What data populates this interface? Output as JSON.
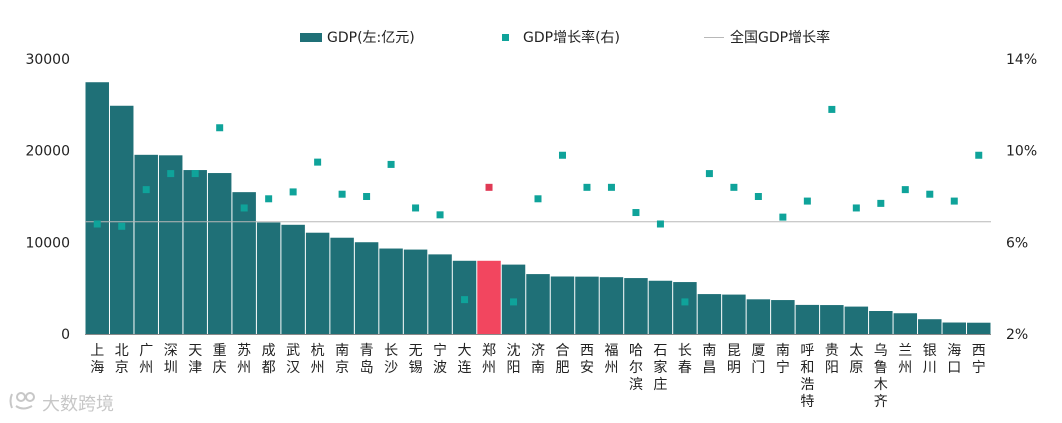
{
  "legend": {
    "bar_label": "GDP(左:亿元)",
    "dot_label": "GDP增长率(右)",
    "line_label": "全国GDP增长率"
  },
  "watermark": "大数跨境",
  "colors": {
    "bar": "#1f7077",
    "highlight_bar": "#f2465f",
    "dot": "#0fa39a",
    "highlight_dot": "#e03a55",
    "national_line": "#b8b8b8"
  },
  "chart_data": {
    "type": "bar",
    "categories": [
      "上海",
      "北京",
      "广州",
      "深圳",
      "天津",
      "重庆",
      "苏州",
      "成都",
      "武汉",
      "杭州",
      "南京",
      "青岛",
      "长沙",
      "无锡",
      "宁波",
      "大连",
      "郑州",
      "沈阳",
      "济南",
      "合肥",
      "西安",
      "福州",
      "哈尔滨",
      "石家庄",
      "长春",
      "南昌",
      "昆明",
      "厦门",
      "南宁",
      "呼和浩特",
      "贵阳",
      "太原",
      "乌鲁木齐",
      "兰州",
      "银川",
      "海口",
      "西宁"
    ],
    "highlight_category": "郑州",
    "series": [
      {
        "name": "GDP(左:亿元)",
        "axis": "left",
        "values": [
          27466,
          24899,
          19547,
          19493,
          17885,
          17559,
          15475,
          12170,
          11913,
          11050,
          10503,
          10011,
          9324,
          9210,
          8686,
          7988,
          7988,
          7570,
          6536,
          6274,
          6257,
          6198,
          6102,
          5809,
          5666,
          4355,
          4300,
          3784,
          3703,
          3174,
          3157,
          2990,
          2509,
          2264,
          1613,
          1253,
          1232
        ]
      },
      {
        "name": "GDP增长率(右)",
        "axis": "right",
        "values": [
          6.8,
          6.7,
          8.3,
          9.0,
          9.0,
          11.0,
          7.5,
          7.9,
          8.2,
          9.5,
          8.1,
          8.0,
          9.4,
          7.5,
          7.2,
          3.5,
          8.4,
          3.4,
          7.9,
          9.8,
          8.4,
          8.4,
          7.3,
          6.8,
          3.4,
          9.0,
          8.4,
          8.0,
          7.1,
          7.8,
          11.8,
          7.5,
          7.7,
          8.3,
          8.1,
          7.8,
          9.8
        ]
      }
    ],
    "reference_line": {
      "name": "全国GDP增长率",
      "value": 6.9,
      "axis": "right"
    },
    "y_left": {
      "ticks": [
        "0",
        "10000",
        "20000",
        "30000"
      ],
      "range": [
        0,
        30000
      ]
    },
    "y_right": {
      "ticks": [
        "2%",
        "6%",
        "10%",
        "14%"
      ],
      "range": [
        2,
        14
      ]
    },
    "title": "",
    "xlabel": "",
    "ylabel": "",
    "grid": false,
    "legend_position": "top"
  }
}
